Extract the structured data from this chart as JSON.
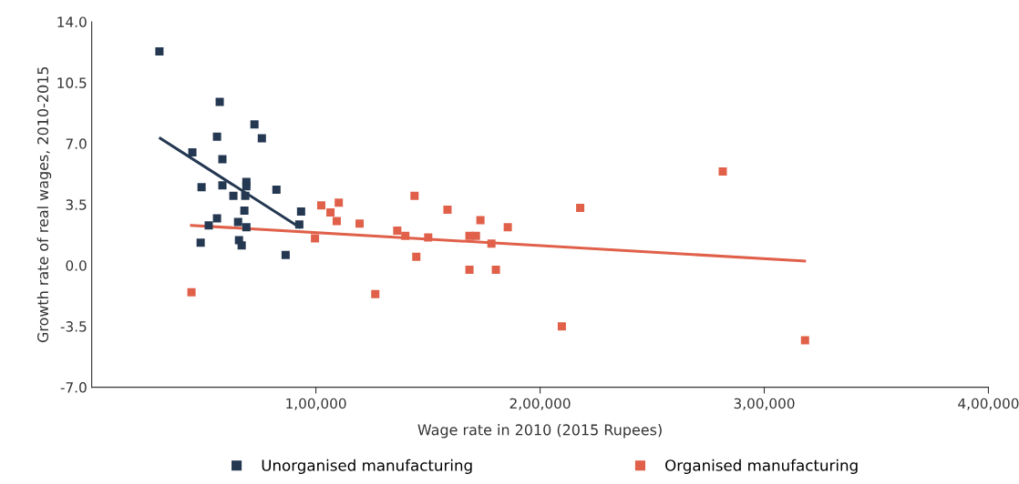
{
  "chart_data": {
    "type": "scatter",
    "xlabel": "Wage rate in 2010 (2015 Rupees)",
    "ylabel": "Growth rate of real wages, 2010-2015",
    "xlim": [
      0,
      400000
    ],
    "xticks": [
      {
        "value": 100000,
        "label": "1,00,000"
      },
      {
        "value": 200000,
        "label": "2,00,000"
      },
      {
        "value": 300000,
        "label": "3,00,000"
      },
      {
        "value": 400000,
        "label": "4,00,000"
      }
    ],
    "ylim": [
      -7,
      14
    ],
    "yticks": [
      {
        "value": -7,
        "label": "-7.0"
      },
      {
        "value": -3.5,
        "label": "-3.5"
      },
      {
        "value": 0,
        "label": "0.0"
      },
      {
        "value": 3.5,
        "label": "3.5"
      },
      {
        "value": 7,
        "label": "7.0"
      },
      {
        "value": 10.5,
        "label": "10.5"
      },
      {
        "value": 14,
        "label": "14.0"
      }
    ],
    "grid": false,
    "legend": "bottom",
    "marker": "square",
    "series": [
      {
        "name": "Unorganised manufacturing",
        "color": "#253852",
        "x": [
          30200,
          57100,
          72600,
          75900,
          55900,
          44900,
          58300,
          49000,
          58300,
          69000,
          69000,
          82400,
          63200,
          68500,
          93400,
          68100,
          55900,
          65300,
          52200,
          69000,
          92600,
          48600,
          65700,
          66900,
          86500
        ],
        "values": [
          12.3,
          9.4,
          8.1,
          7.3,
          7.4,
          6.5,
          6.1,
          4.5,
          4.6,
          4.8,
          4.55,
          4.35,
          4.0,
          4.0,
          3.1,
          3.15,
          2.7,
          2.5,
          2.3,
          2.2,
          2.35,
          1.3,
          1.45,
          1.15,
          0.6
        ]
      },
      {
        "name": "Organised manufacturing",
        "color": "#e0604a",
        "x": [
          44500,
          102400,
          106500,
          110200,
          109300,
          119500,
          99600,
          126500,
          136300,
          139900,
          144000,
          144800,
          150100,
          158700,
          168500,
          171400,
          168500,
          173400,
          178300,
          180300,
          185600,
          209700,
          217900,
          281500,
          318200
        ],
        "values": [
          -1.55,
          3.45,
          3.05,
          3.6,
          2.55,
          2.4,
          1.55,
          -1.65,
          2.0,
          1.7,
          4.0,
          0.5,
          1.6,
          3.2,
          1.7,
          1.7,
          -0.25,
          2.6,
          1.25,
          -0.25,
          2.2,
          -3.5,
          3.3,
          5.4,
          -4.3
        ]
      },
      {
        "type": "line",
        "color": "#253852",
        "marker": "none",
        "x": [
          30600,
          92600
        ],
        "values": [
          7.3,
          2.2
        ]
      },
      {
        "type": "line",
        "color": "#e0604a",
        "marker": "none",
        "x": [
          44500,
          318000
        ],
        "values": [
          2.3,
          0.25
        ]
      }
    ]
  }
}
